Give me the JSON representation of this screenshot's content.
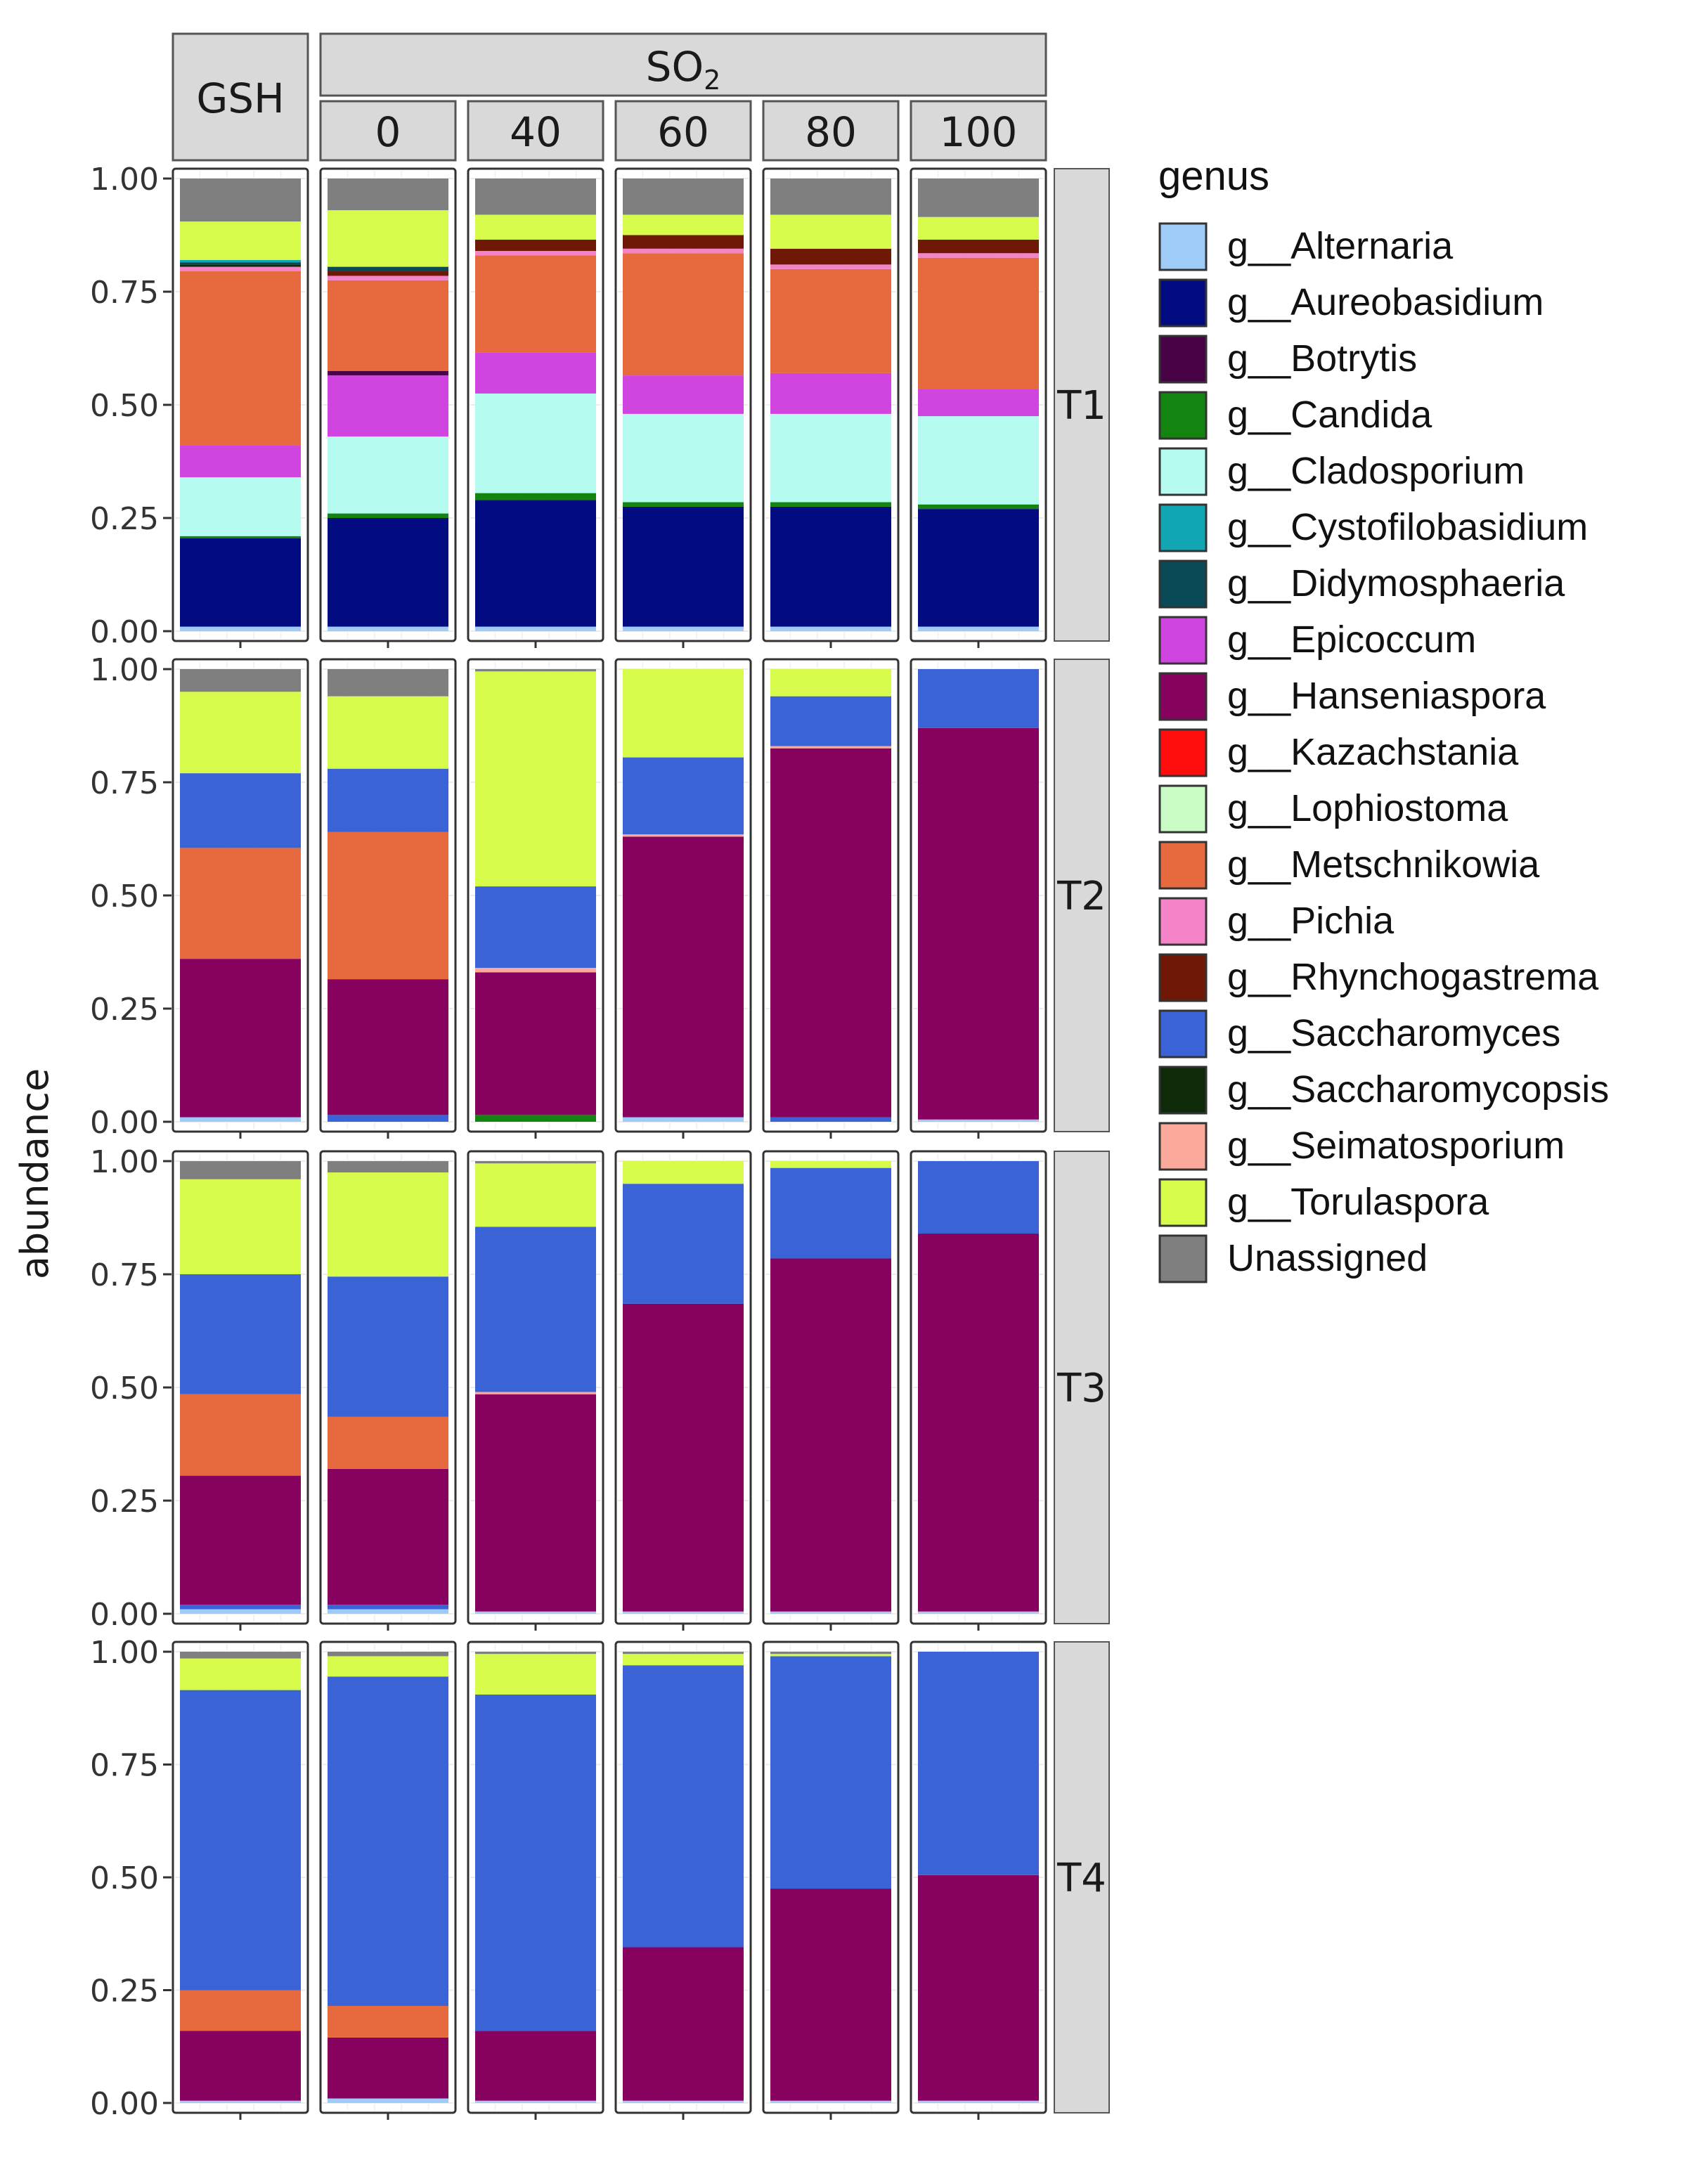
{
  "chart_data": {
    "type": "bar",
    "stacked": true,
    "ylabel": "abundance",
    "y_ticks": [
      0,
      0.25,
      0.5,
      0.75,
      1.0
    ],
    "y_tick_labels": [
      "0.00",
      "0.25",
      "0.50",
      "0.75",
      "1.00"
    ],
    "ylim": [
      0,
      1
    ],
    "gsh_label": "GSH",
    "so2_label": "SO",
    "so2_subscript": "2",
    "columns": [
      "GSH",
      "0",
      "40",
      "60",
      "80",
      "100"
    ],
    "rows": [
      "T1",
      "T2",
      "T3",
      "T4"
    ],
    "legend_title": "genus",
    "legend": [
      {
        "name": "g__Alternaria",
        "color": "#9ecbf7"
      },
      {
        "name": "g__Aureobasidium",
        "color": "#020b80"
      },
      {
        "name": "g__Botrytis",
        "color": "#4a0246"
      },
      {
        "name": "g__Candida",
        "color": "#138410"
      },
      {
        "name": "g__Cladosporium",
        "color": "#b5fbf0"
      },
      {
        "name": "g__Cystofilobasidium",
        "color": "#12a5b4"
      },
      {
        "name": "g__Didymosphaeria",
        "color": "#0a4a57"
      },
      {
        "name": "g__Epicoccum",
        "color": "#d045e0"
      },
      {
        "name": "g__Hanseniaspora",
        "color": "#87015e"
      },
      {
        "name": "g__Kazachstania",
        "color": "#ff0d0d"
      },
      {
        "name": "g__Lophiostoma",
        "color": "#c9fbc4"
      },
      {
        "name": "g__Metschnikowia",
        "color": "#e66a3e"
      },
      {
        "name": "g__Pichia",
        "color": "#f583c8"
      },
      {
        "name": "g__Rhynchogastrema",
        "color": "#6e1805"
      },
      {
        "name": "g__Saccharomyces",
        "color": "#3a63d6"
      },
      {
        "name": "g__Saccharomycopsis",
        "color": "#0e2a08"
      },
      {
        "name": "g__Seimatosporium",
        "color": "#fba99a"
      },
      {
        "name": "g__Torulaspora",
        "color": "#d7fb4b"
      },
      {
        "name": "Unassigned",
        "color": "#7f7f7f"
      }
    ],
    "bars": {
      "T1": {
        "GSH": [
          [
            "g__Alternaria",
            0.01
          ],
          [
            "g__Aureobasidium",
            0.195
          ],
          [
            "g__Candida",
            0.005
          ],
          [
            "g__Cladosporium",
            0.13
          ],
          [
            "g__Epicoccum",
            0.07
          ],
          [
            "g__Metschnikowia",
            0.385
          ],
          [
            "g__Pichia",
            0.01
          ],
          [
            "g__Saccharomycopsis",
            0.005
          ],
          [
            "g__Didymosphaeria",
            0.005
          ],
          [
            "g__Cystofilobasidium",
            0.005
          ],
          [
            "g__Torulaspora",
            0.085
          ],
          [
            "Unassigned",
            0.095
          ]
        ],
        "0": [
          [
            "g__Alternaria",
            0.01
          ],
          [
            "g__Aureobasidium",
            0.24
          ],
          [
            "g__Candida",
            0.01
          ],
          [
            "g__Cladosporium",
            0.17
          ],
          [
            "g__Epicoccum",
            0.135
          ],
          [
            "g__Botrytis",
            0.01
          ],
          [
            "g__Metschnikowia",
            0.2
          ],
          [
            "g__Pichia",
            0.01
          ],
          [
            "g__Rhynchogastrema",
            0.01
          ],
          [
            "g__Didymosphaeria",
            0.01
          ],
          [
            "g__Torulaspora",
            0.125
          ],
          [
            "Unassigned",
            0.07
          ]
        ],
        "40": [
          [
            "g__Alternaria",
            0.01
          ],
          [
            "g__Aureobasidium",
            0.28
          ],
          [
            "g__Candida",
            0.015
          ],
          [
            "g__Cladosporium",
            0.22
          ],
          [
            "g__Epicoccum",
            0.09
          ],
          [
            "g__Metschnikowia",
            0.215
          ],
          [
            "g__Pichia",
            0.01
          ],
          [
            "g__Rhynchogastrema",
            0.025
          ],
          [
            "g__Torulaspora",
            0.055
          ],
          [
            "Unassigned",
            0.08
          ]
        ],
        "60": [
          [
            "g__Alternaria",
            0.01
          ],
          [
            "g__Aureobasidium",
            0.265
          ],
          [
            "g__Candida",
            0.01
          ],
          [
            "g__Cladosporium",
            0.195
          ],
          [
            "g__Epicoccum",
            0.085
          ],
          [
            "g__Metschnikowia",
            0.27
          ],
          [
            "g__Pichia",
            0.01
          ],
          [
            "g__Rhynchogastrema",
            0.03
          ],
          [
            "g__Torulaspora",
            0.045
          ],
          [
            "Unassigned",
            0.08
          ]
        ],
        "80": [
          [
            "g__Alternaria",
            0.01
          ],
          [
            "g__Aureobasidium",
            0.265
          ],
          [
            "g__Candida",
            0.01
          ],
          [
            "g__Cladosporium",
            0.195
          ],
          [
            "g__Epicoccum",
            0.09
          ],
          [
            "g__Metschnikowia",
            0.23
          ],
          [
            "g__Pichia",
            0.01
          ],
          [
            "g__Rhynchogastrema",
            0.035
          ],
          [
            "g__Torulaspora",
            0.075
          ],
          [
            "Unassigned",
            0.08
          ]
        ],
        "100": [
          [
            "g__Alternaria",
            0.01
          ],
          [
            "g__Aureobasidium",
            0.26
          ],
          [
            "g__Candida",
            0.01
          ],
          [
            "g__Cladosporium",
            0.195
          ],
          [
            "g__Epicoccum",
            0.06
          ],
          [
            "g__Metschnikowia",
            0.29
          ],
          [
            "g__Pichia",
            0.01
          ],
          [
            "g__Rhynchogastrema",
            0.03
          ],
          [
            "g__Torulaspora",
            0.05
          ],
          [
            "Unassigned",
            0.085
          ]
        ]
      },
      "T2": {
        "GSH": [
          [
            "g__Alternaria",
            0.01
          ],
          [
            "g__Hanseniaspora",
            0.35
          ],
          [
            "g__Metschnikowia",
            0.245
          ],
          [
            "g__Saccharomyces",
            0.165
          ],
          [
            "g__Torulaspora",
            0.18
          ],
          [
            "Unassigned",
            0.05
          ]
        ],
        "0": [
          [
            "g__Saccharomyces",
            0.015
          ],
          [
            "g__Hanseniaspora",
            0.3
          ],
          [
            "g__Metschnikowia",
            0.325
          ],
          [
            "g__Saccharomyces",
            0.14
          ],
          [
            "g__Torulaspora",
            0.16
          ],
          [
            "Unassigned",
            0.06
          ]
        ],
        "40": [
          [
            "g__Candida",
            0.015
          ],
          [
            "g__Hanseniaspora",
            0.315
          ],
          [
            "g__Seimatosporium",
            0.01
          ],
          [
            "g__Saccharomyces",
            0.18
          ],
          [
            "g__Torulaspora",
            0.475
          ],
          [
            "Unassigned",
            0.005
          ]
        ],
        "60": [
          [
            "g__Alternaria",
            0.01
          ],
          [
            "g__Hanseniaspora",
            0.62
          ],
          [
            "g__Seimatosporium",
            0.005
          ],
          [
            "g__Saccharomyces",
            0.17
          ],
          [
            "g__Torulaspora",
            0.195
          ]
        ],
        "80": [
          [
            "g__Saccharomyces",
            0.01
          ],
          [
            "g__Hanseniaspora",
            0.815
          ],
          [
            "g__Seimatosporium",
            0.005
          ],
          [
            "g__Saccharomyces",
            0.11
          ],
          [
            "g__Torulaspora",
            0.06
          ]
        ],
        "100": [
          [
            "g__Alternaria",
            0.005
          ],
          [
            "g__Hanseniaspora",
            0.865
          ],
          [
            "g__Saccharomyces",
            0.13
          ]
        ]
      },
      "T3": {
        "GSH": [
          [
            "g__Alternaria",
            0.01
          ],
          [
            "g__Saccharomyces",
            0.01
          ],
          [
            "g__Hanseniaspora",
            0.285
          ],
          [
            "g__Metschnikowia",
            0.18
          ],
          [
            "g__Saccharomyces",
            0.265
          ],
          [
            "g__Torulaspora",
            0.21
          ],
          [
            "Unassigned",
            0.04
          ]
        ],
        "0": [
          [
            "g__Alternaria",
            0.01
          ],
          [
            "g__Saccharomyces",
            0.01
          ],
          [
            "g__Hanseniaspora",
            0.3
          ],
          [
            "g__Metschnikowia",
            0.115
          ],
          [
            "g__Saccharomyces",
            0.31
          ],
          [
            "g__Torulaspora",
            0.23
          ],
          [
            "Unassigned",
            0.025
          ]
        ],
        "40": [
          [
            "g__Alternaria",
            0.005
          ],
          [
            "g__Hanseniaspora",
            0.48
          ],
          [
            "g__Seimatosporium",
            0.005
          ],
          [
            "g__Saccharomyces",
            0.365
          ],
          [
            "g__Torulaspora",
            0.14
          ],
          [
            "Unassigned",
            0.005
          ]
        ],
        "60": [
          [
            "g__Alternaria",
            0.005
          ],
          [
            "g__Hanseniaspora",
            0.68
          ],
          [
            "g__Saccharomyces",
            0.265
          ],
          [
            "g__Torulaspora",
            0.05
          ]
        ],
        "80": [
          [
            "g__Alternaria",
            0.005
          ],
          [
            "g__Hanseniaspora",
            0.78
          ],
          [
            "g__Saccharomyces",
            0.2
          ],
          [
            "g__Torulaspora",
            0.015
          ]
        ],
        "100": [
          [
            "g__Alternaria",
            0.005
          ],
          [
            "g__Hanseniaspora",
            0.835
          ],
          [
            "g__Saccharomyces",
            0.16
          ]
        ]
      },
      "T4": {
        "GSH": [
          [
            "g__Alternaria",
            0.005
          ],
          [
            "g__Hanseniaspora",
            0.155
          ],
          [
            "g__Metschnikowia",
            0.09
          ],
          [
            "g__Saccharomyces",
            0.665
          ],
          [
            "g__Torulaspora",
            0.07
          ],
          [
            "Unassigned",
            0.015
          ]
        ],
        "0": [
          [
            "g__Alternaria",
            0.01
          ],
          [
            "g__Hanseniaspora",
            0.135
          ],
          [
            "g__Metschnikowia",
            0.07
          ],
          [
            "g__Saccharomyces",
            0.73
          ],
          [
            "g__Torulaspora",
            0.045
          ],
          [
            "Unassigned",
            0.01
          ]
        ],
        "40": [
          [
            "g__Alternaria",
            0.005
          ],
          [
            "g__Hanseniaspora",
            0.155
          ],
          [
            "g__Saccharomyces",
            0.745
          ],
          [
            "g__Torulaspora",
            0.09
          ],
          [
            "Unassigned",
            0.005
          ]
        ],
        "60": [
          [
            "g__Alternaria",
            0.005
          ],
          [
            "g__Hanseniaspora",
            0.34
          ],
          [
            "g__Saccharomyces",
            0.625
          ],
          [
            "g__Torulaspora",
            0.025
          ],
          [
            "Unassigned",
            0.005
          ]
        ],
        "80": [
          [
            "g__Alternaria",
            0.005
          ],
          [
            "g__Hanseniaspora",
            0.47
          ],
          [
            "g__Saccharomyces",
            0.515
          ],
          [
            "g__Torulaspora",
            0.005
          ],
          [
            "Unassigned",
            0.005
          ]
        ],
        "100": [
          [
            "g__Alternaria",
            0.005
          ],
          [
            "g__Hanseniaspora",
            0.5
          ],
          [
            "g__Saccharomyces",
            0.495
          ]
        ]
      }
    }
  }
}
